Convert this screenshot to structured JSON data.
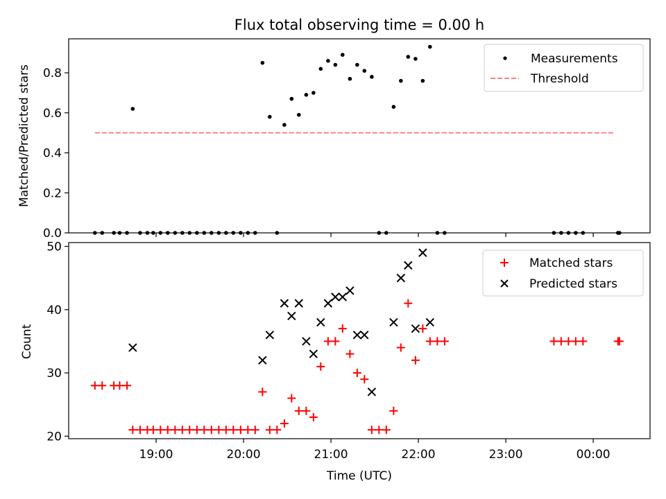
{
  "chart_data": [
    {
      "type": "scatter",
      "title": "Flux total observing time = 0.00 h",
      "xlabel": "",
      "ylabel": "Matched/Predicted stars",
      "xlim": [
        18.0,
        24.65
      ],
      "ylim": [
        0.0,
        0.97
      ],
      "yticks": [
        0.0,
        0.2,
        0.4,
        0.6,
        0.8
      ],
      "ytick_labels": [
        "0.0",
        "0.2",
        "0.4",
        "0.6",
        "0.8"
      ],
      "legend": {
        "position": "top-right",
        "entries": [
          "Measurements",
          "Threshold"
        ]
      },
      "series": [
        {
          "name": "Measurements",
          "color": "#000000",
          "marker": "dot",
          "x": [
            18.3,
            18.383,
            18.517,
            18.583,
            18.667,
            18.733,
            18.817,
            18.9,
            18.967,
            19.05,
            19.133,
            19.217,
            19.3,
            19.383,
            19.467,
            19.55,
            19.633,
            19.717,
            19.8,
            19.883,
            19.967,
            20.05,
            20.133,
            20.217,
            20.3,
            20.383,
            20.467,
            20.55,
            20.633,
            20.717,
            20.8,
            20.883,
            20.967,
            21.05,
            21.133,
            21.217,
            21.3,
            21.383,
            21.467,
            21.55,
            21.633,
            21.717,
            21.8,
            21.883,
            21.967,
            22.05,
            22.133,
            22.217,
            22.3,
            23.55,
            23.633,
            23.717,
            23.8,
            23.883,
            24.283,
            24.3
          ],
          "y": [
            0.0,
            0.0,
            0.0,
            0.0,
            0.0,
            0.62,
            0.0,
            0.0,
            0.0,
            0.0,
            0.0,
            0.0,
            0.0,
            0.0,
            0.0,
            0.0,
            0.0,
            0.0,
            0.0,
            0.0,
            0.0,
            0.0,
            0.0,
            0.85,
            0.58,
            0.0,
            0.54,
            0.67,
            0.59,
            0.69,
            0.7,
            0.82,
            0.86,
            0.84,
            0.89,
            0.77,
            0.84,
            0.81,
            0.78,
            0.0,
            0.0,
            0.63,
            0.76,
            0.88,
            0.87,
            0.76,
            0.93,
            0.0,
            0.0,
            0.0,
            0.0,
            0.0,
            0.0,
            0.0,
            0.0,
            0.0
          ]
        },
        {
          "name": "Threshold",
          "color": "#ff7f7f",
          "style": "dashed",
          "x": [
            18.3,
            24.25
          ],
          "y": [
            0.5,
            0.5
          ]
        }
      ]
    },
    {
      "type": "scatter",
      "title": "",
      "xlabel": "Time (UTC)",
      "ylabel": "Count",
      "xlim": [
        18.0,
        24.65
      ],
      "ylim": [
        19.6,
        50.6
      ],
      "yticks": [
        20,
        30,
        40,
        50
      ],
      "ytick_labels": [
        "20",
        "30",
        "40",
        "50"
      ],
      "xticks": [
        19,
        20,
        21,
        22,
        23,
        24
      ],
      "xtick_labels": [
        "19:00",
        "20:00",
        "21:00",
        "22:00",
        "23:00",
        "00:00"
      ],
      "legend": {
        "position": "top-right",
        "entries": [
          "Matched stars",
          "Predicted stars"
        ]
      },
      "series": [
        {
          "name": "Matched stars",
          "color": "#ff0000",
          "marker": "plus",
          "x": [
            18.3,
            18.383,
            18.517,
            18.583,
            18.667,
            18.733,
            18.817,
            18.9,
            18.967,
            19.05,
            19.133,
            19.217,
            19.3,
            19.383,
            19.467,
            19.55,
            19.633,
            19.717,
            19.8,
            19.883,
            19.967,
            20.05,
            20.133,
            20.217,
            20.3,
            20.383,
            20.467,
            20.55,
            20.633,
            20.717,
            20.8,
            20.883,
            20.967,
            21.05,
            21.133,
            21.217,
            21.3,
            21.383,
            21.467,
            21.55,
            21.633,
            21.717,
            21.8,
            21.883,
            21.967,
            22.05,
            22.133,
            22.217,
            22.3,
            23.55,
            23.633,
            23.717,
            23.8,
            23.883,
            24.283,
            24.3
          ],
          "y": [
            28,
            28,
            28,
            28,
            28,
            21,
            21,
            21,
            21,
            21,
            21,
            21,
            21,
            21,
            21,
            21,
            21,
            21,
            21,
            21,
            21,
            21,
            21,
            27,
            21,
            21,
            22,
            26,
            24,
            24,
            23,
            31,
            35,
            35,
            37,
            33,
            30,
            29,
            21,
            21,
            21,
            24,
            34,
            41,
            32,
            37,
            35,
            35,
            35,
            35,
            35,
            35,
            35,
            35,
            35,
            35
          ]
        },
        {
          "name": "Predicted stars",
          "color": "#000000",
          "marker": "x",
          "x": [
            18.733,
            20.217,
            20.3,
            20.467,
            20.55,
            20.633,
            20.717,
            20.8,
            20.883,
            20.967,
            21.05,
            21.133,
            21.217,
            21.3,
            21.383,
            21.467,
            21.717,
            21.8,
            21.883,
            21.967,
            22.05,
            22.133
          ],
          "y": [
            34,
            32,
            36,
            41,
            39,
            41,
            35,
            33,
            38,
            41,
            42,
            42,
            43,
            36,
            36,
            27,
            38,
            45,
            47,
            37,
            49,
            38
          ]
        }
      ]
    }
  ]
}
